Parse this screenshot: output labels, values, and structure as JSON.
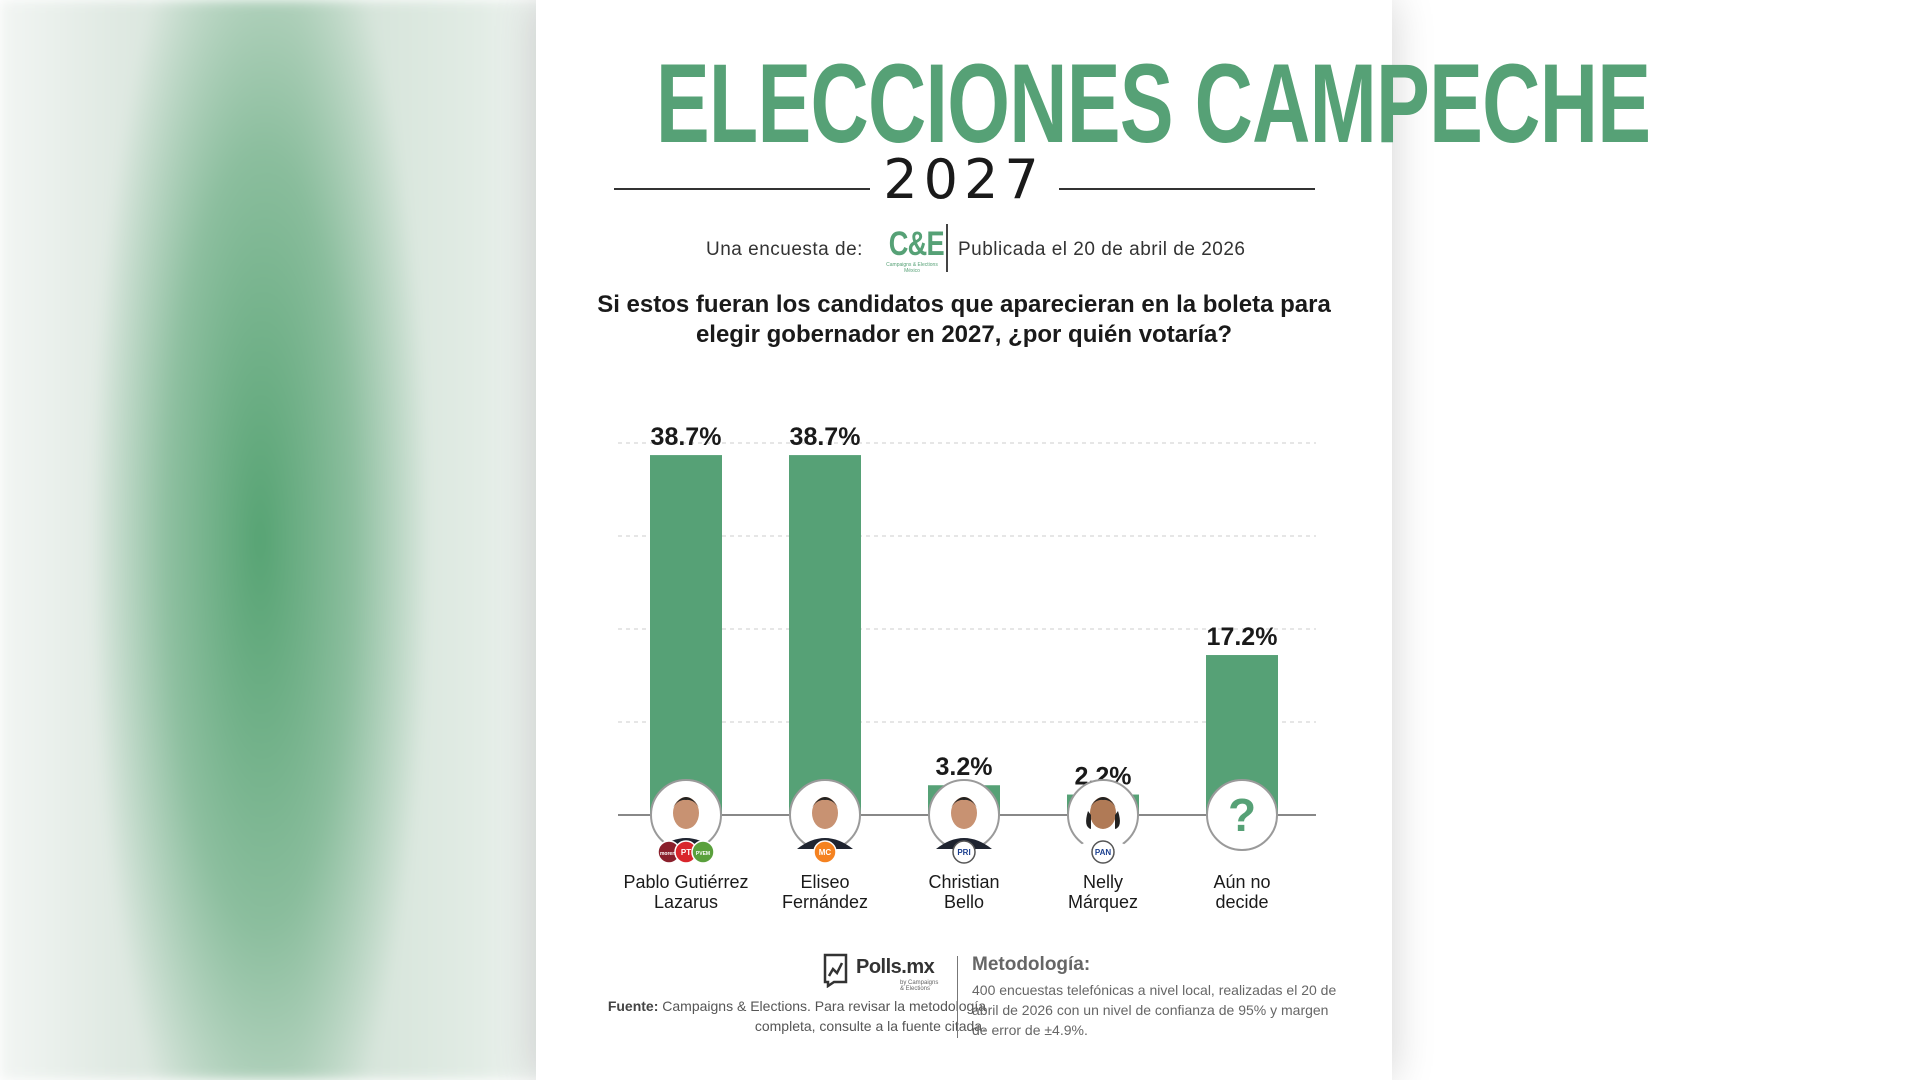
{
  "header": {
    "title": "ELECCIONES CAMPECHE",
    "year": "2027",
    "byline_lead": "Una encuesta de:",
    "source_logo": "C&E",
    "source_logo_sub": "Campaigns & Elections México",
    "published": "Publicada el 20 de abril de 2026"
  },
  "question": "Si estos fueran los candidatos que aparecieran en la boleta para elegir gobernador en 2027, ¿por quién votaría?",
  "chart_data": {
    "type": "bar",
    "title": "Si estos fueran los candidatos que aparecieran en la boleta para elegir gobernador en 2027, ¿por quién votaría?",
    "categories": [
      "Pablo Gutiérrez Lazarus",
      "Eliseo Fernández",
      "Christian Bello",
      "Nelly Márquez",
      "Aún no decide"
    ],
    "values": [
      38.7,
      38.7,
      3.2,
      2.2,
      17.2
    ],
    "labels": [
      "38.7%",
      "38.7%",
      "3.2%",
      "2.2%",
      "17.2%"
    ],
    "ylim": [
      0,
      40
    ],
    "grid": true,
    "bar_color": "#56a176",
    "parties": [
      [
        "morena",
        "PT",
        "PVEM"
      ],
      [
        "MC"
      ],
      [
        "PRI"
      ],
      [
        "PAN"
      ],
      []
    ]
  },
  "candidates": [
    {
      "line1": "Pablo Gutiérrez",
      "line2": "Lazarus"
    },
    {
      "line1": "Eliseo",
      "line2": "Fernández"
    },
    {
      "line1": "Christian",
      "line2": "Bello"
    },
    {
      "line1": "Nelly",
      "line2": "Márquez"
    },
    {
      "line1": "Aún no",
      "line2": "decide"
    }
  ],
  "undecided_symbol": "?",
  "footer": {
    "brand": "Polls.mx",
    "brand_sub": "by Campaigns & Elections",
    "fuente_label": "Fuente:",
    "fuente_text": "Campaigns & Elections. Para revisar la metodología completa, consulte a la fuente citada.",
    "metodologia_title": "Metodología:",
    "metodologia_text": "400 encuestas telefónicas a nivel local, realizadas el 20 de abril de 2026 con un nivel de confianza de 95% y margen de error de ±4.9%."
  },
  "colors": {
    "accent": "#56a176",
    "text": "#1a1a1a"
  }
}
